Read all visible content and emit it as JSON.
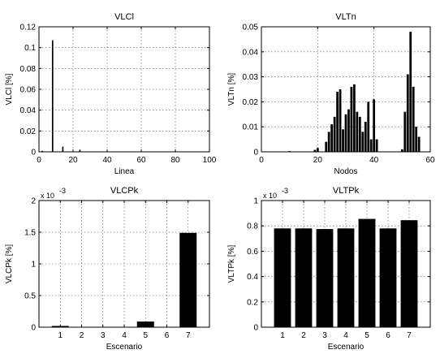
{
  "chart_data": [
    {
      "type": "bar",
      "title": "VLCl",
      "xlabel": "Linea",
      "ylabel": "VLCl [%]",
      "xlim": [
        0,
        100
      ],
      "ylim": [
        0,
        0.12
      ],
      "xticks": [
        0,
        20,
        40,
        60,
        80,
        100
      ],
      "yticks": [
        0,
        0.02,
        0.04,
        0.06,
        0.08,
        0.1,
        0.12
      ],
      "xtick_labels": [
        "0",
        "20",
        "40",
        "60",
        "80",
        "100"
      ],
      "ytick_labels": [
        "0",
        "0.02",
        "0.04",
        "0.06",
        "0.08",
        "0.1",
        "0.12"
      ],
      "grid": true,
      "bar_width": 0.8,
      "x": [
        2,
        8,
        14,
        24
      ],
      "values": [
        0.001,
        0.107,
        0.005,
        0.002
      ]
    },
    {
      "type": "bar",
      "title": "VLTn",
      "xlabel": "Nodos",
      "ylabel": "VLTn [%]",
      "xlim": [
        0,
        60
      ],
      "ylim": [
        0,
        0.05
      ],
      "xticks": [
        0,
        20,
        40,
        60
      ],
      "yticks": [
        0,
        0.01,
        0.02,
        0.03,
        0.04,
        0.05
      ],
      "xtick_labels": [
        "0",
        "20",
        "40",
        "60"
      ],
      "ytick_labels": [
        "0",
        "0.01",
        "0.02",
        "0.03",
        "0.04",
        "0.05"
      ],
      "grid": true,
      "bar_width": 0.8,
      "x": [
        10,
        19,
        20,
        23,
        24,
        25,
        26,
        27,
        28,
        29,
        30,
        31,
        32,
        33,
        34,
        35,
        36,
        37,
        38,
        39,
        40,
        41,
        50,
        51,
        52,
        53,
        54,
        55,
        56
      ],
      "values": [
        0.0003,
        0.0008,
        0.0015,
        0.004,
        0.008,
        0.011,
        0.014,
        0.024,
        0.025,
        0.009,
        0.015,
        0.017,
        0.026,
        0.027,
        0.016,
        0.014,
        0.008,
        0.012,
        0.02,
        0.005,
        0.021,
        0.005,
        0.001,
        0.016,
        0.031,
        0.048,
        0.026,
        0.01,
        0.006
      ]
    },
    {
      "type": "bar",
      "title": "VLCPk",
      "xlabel": "Escenario",
      "ylabel": "VLCPk [%]",
      "y_multiplier": "x 10",
      "y_exponent": "-3",
      "xlim": [
        0,
        8
      ],
      "ylim": [
        0,
        2
      ],
      "xticks": [
        1,
        2,
        3,
        4,
        5,
        6,
        7
      ],
      "yticks": [
        0,
        0.5,
        1,
        1.5,
        2
      ],
      "xtick_labels": [
        "1",
        "2",
        "3",
        "4",
        "5",
        "6",
        "7"
      ],
      "ytick_labels": [
        "0",
        "0.5",
        "1",
        "1.5",
        "2"
      ],
      "grid": true,
      "bar_width": 0.8,
      "categories": [
        "1",
        "2",
        "3",
        "4",
        "5",
        "6",
        "7"
      ],
      "values": [
        0.02,
        0,
        0,
        0,
        0.09,
        0,
        1.49
      ]
    },
    {
      "type": "bar",
      "title": "VLTPk",
      "xlabel": "Escenario",
      "ylabel": "VLTPk [%]",
      "y_multiplier": "x 10",
      "y_exponent": "-3",
      "xlim": [
        0,
        8
      ],
      "ylim": [
        0,
        1
      ],
      "xticks": [
        1,
        2,
        3,
        4,
        5,
        6,
        7
      ],
      "yticks": [
        0,
        0.2,
        0.4,
        0.6,
        0.8,
        1
      ],
      "xtick_labels": [
        "1",
        "2",
        "3",
        "4",
        "5",
        "6",
        "7"
      ],
      "ytick_labels": [
        "0",
        "0.2",
        "0.4",
        "0.6",
        "0.8",
        "1"
      ],
      "grid": true,
      "bar_width": 0.8,
      "categories": [
        "1",
        "2",
        "3",
        "4",
        "5",
        "6",
        "7"
      ],
      "values": [
        0.78,
        0.78,
        0.775,
        0.78,
        0.855,
        0.78,
        0.845
      ]
    }
  ]
}
